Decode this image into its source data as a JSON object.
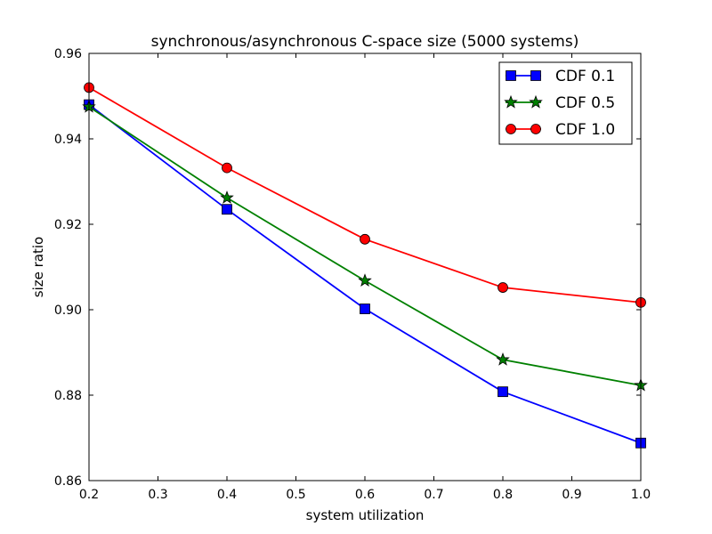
{
  "chart_data": {
    "type": "line",
    "title": "synchronous/asynchronous C-space size (5000 systems)",
    "xlabel": "system utilization",
    "ylabel": "size ratio",
    "x": [
      0.2,
      0.4,
      0.6,
      0.8,
      1.0
    ],
    "xlim": [
      0.2,
      1.0
    ],
    "ylim": [
      0.86,
      0.96
    ],
    "xticks": [
      "0.2",
      "0.3",
      "0.4",
      "0.5",
      "0.6",
      "0.7",
      "0.8",
      "0.9",
      "1.0"
    ],
    "yticks": [
      "0.86",
      "0.88",
      "0.90",
      "0.92",
      "0.94",
      "0.96"
    ],
    "grid": false,
    "legend_position": "top-right",
    "series": [
      {
        "name": "CDF 0.1",
        "marker": "square",
        "color": "#0000ff",
        "values": [
          0.948,
          0.9235,
          0.9002,
          0.8808,
          0.8688
        ]
      },
      {
        "name": "CDF 0.5",
        "marker": "star",
        "color": "#008000",
        "values": [
          0.9475,
          0.9262,
          0.9068,
          0.8883,
          0.8823
        ]
      },
      {
        "name": "CDF 1.0",
        "marker": "circle",
        "color": "#ff0000",
        "values": [
          0.952,
          0.9332,
          0.9165,
          0.9052,
          0.9017
        ]
      }
    ]
  }
}
